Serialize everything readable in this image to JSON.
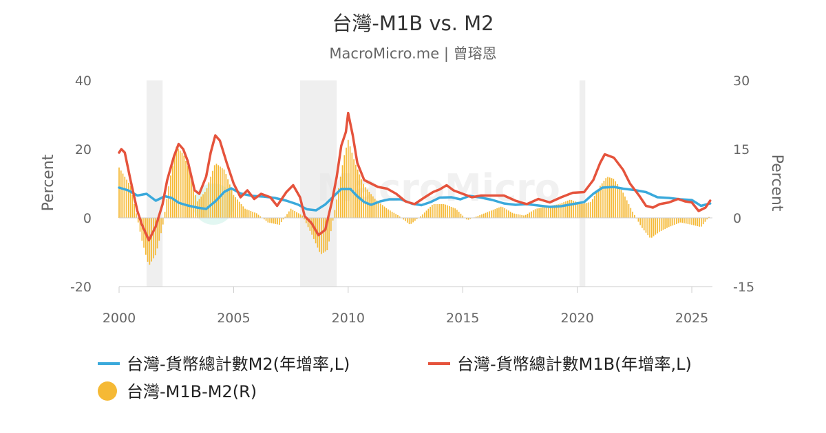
{
  "chart_data": {
    "type": "line",
    "title": "台灣-M1B vs. M2",
    "subtitle": "MacroMicro.me | 曾瑢恩",
    "x_ticks": [
      2000,
      2005,
      2010,
      2015,
      2020,
      2025
    ],
    "xlim": [
      2000,
      2025.9
    ],
    "ylim_left": [
      -20,
      40
    ],
    "ylim_right": [
      -15,
      30
    ],
    "yticks_left": [
      -20,
      0,
      20,
      40
    ],
    "yticks_right": [
      -15,
      0,
      15,
      30
    ],
    "ylabel_left": "Percent",
    "ylabel_right": "Percent",
    "watermark": "MacroMicro",
    "legend_position": "bottom",
    "shaded_periods": [
      [
        2001.2,
        2001.9
      ],
      [
        2007.9,
        2009.5
      ],
      [
        2020.1,
        2020.35
      ]
    ],
    "colors": {
      "m2": "#3aa9db",
      "m1b": "#e5533c",
      "spread": "#f5b935",
      "shade": "#efefef",
      "axis": "#cccccc"
    },
    "series": [
      {
        "key": "m2",
        "name": "台灣-貨幣總計數M2(年增率,L)",
        "type": "line",
        "axis": "left",
        "points": [
          [
            2000.0,
            8.8
          ],
          [
            2000.4,
            8.0
          ],
          [
            2000.8,
            6.5
          ],
          [
            2001.2,
            7.0
          ],
          [
            2001.6,
            5.0
          ],
          [
            2002.0,
            6.3
          ],
          [
            2002.3,
            5.8
          ],
          [
            2002.6,
            4.4
          ],
          [
            2003.0,
            3.6
          ],
          [
            2003.4,
            3.0
          ],
          [
            2003.8,
            2.6
          ],
          [
            2004.2,
            4.8
          ],
          [
            2004.6,
            7.6
          ],
          [
            2004.9,
            8.6
          ],
          [
            2005.3,
            7.1
          ],
          [
            2005.8,
            6.4
          ],
          [
            2006.3,
            6.2
          ],
          [
            2006.8,
            5.8
          ],
          [
            2007.3,
            5.0
          ],
          [
            2007.8,
            3.9
          ],
          [
            2008.2,
            2.5
          ],
          [
            2008.6,
            2.2
          ],
          [
            2009.0,
            3.9
          ],
          [
            2009.4,
            6.5
          ],
          [
            2009.7,
            8.4
          ],
          [
            2010.1,
            8.4
          ],
          [
            2010.4,
            6.3
          ],
          [
            2010.7,
            4.6
          ],
          [
            2011.0,
            3.8
          ],
          [
            2011.4,
            4.8
          ],
          [
            2011.8,
            5.4
          ],
          [
            2012.3,
            5.4
          ],
          [
            2012.8,
            4.1
          ],
          [
            2013.2,
            3.7
          ],
          [
            2013.6,
            4.6
          ],
          [
            2014.0,
            5.9
          ],
          [
            2014.5,
            6.0
          ],
          [
            2014.9,
            5.4
          ],
          [
            2015.3,
            6.4
          ],
          [
            2015.8,
            5.9
          ],
          [
            2016.3,
            5.2
          ],
          [
            2016.8,
            4.2
          ],
          [
            2017.3,
            3.8
          ],
          [
            2017.8,
            4.0
          ],
          [
            2018.3,
            3.6
          ],
          [
            2018.8,
            3.2
          ],
          [
            2019.3,
            3.4
          ],
          [
            2019.8,
            4.0
          ],
          [
            2020.3,
            4.6
          ],
          [
            2020.7,
            7.0
          ],
          [
            2021.1,
            8.8
          ],
          [
            2021.6,
            9.0
          ],
          [
            2022.0,
            8.5
          ],
          [
            2022.5,
            8.1
          ],
          [
            2023.0,
            7.5
          ],
          [
            2023.5,
            6.0
          ],
          [
            2024.0,
            5.8
          ],
          [
            2024.5,
            5.4
          ],
          [
            2025.0,
            5.2
          ],
          [
            2025.4,
            3.5
          ],
          [
            2025.8,
            4.2
          ]
        ]
      },
      {
        "key": "m1b",
        "name": "台灣-貨幣總計數M1B(年增率,L)",
        "type": "line",
        "axis": "left",
        "points": [
          [
            2000.0,
            19.0
          ],
          [
            2000.1,
            20.0
          ],
          [
            2000.25,
            19.0
          ],
          [
            2000.5,
            11.0
          ],
          [
            2000.8,
            2.0
          ],
          [
            2001.0,
            -2.0
          ],
          [
            2001.3,
            -6.5
          ],
          [
            2001.6,
            -2.5
          ],
          [
            2001.9,
            4.0
          ],
          [
            2002.1,
            11.0
          ],
          [
            2002.4,
            18.0
          ],
          [
            2002.6,
            21.5
          ],
          [
            2002.8,
            20.0
          ],
          [
            2003.0,
            16.5
          ],
          [
            2003.3,
            8.0
          ],
          [
            2003.5,
            7.0
          ],
          [
            2003.8,
            12.0
          ],
          [
            2004.0,
            19.0
          ],
          [
            2004.2,
            24.0
          ],
          [
            2004.4,
            22.5
          ],
          [
            2004.7,
            16.0
          ],
          [
            2005.0,
            10.0
          ],
          [
            2005.3,
            6.0
          ],
          [
            2005.6,
            8.0
          ],
          [
            2005.9,
            5.5
          ],
          [
            2006.2,
            7.0
          ],
          [
            2006.6,
            6.0
          ],
          [
            2006.9,
            3.5
          ],
          [
            2007.3,
            7.5
          ],
          [
            2007.6,
            9.5
          ],
          [
            2007.9,
            6.0
          ],
          [
            2008.1,
            0.5
          ],
          [
            2008.4,
            -1.5
          ],
          [
            2008.7,
            -5.0
          ],
          [
            2009.0,
            -3.5
          ],
          [
            2009.3,
            5.0
          ],
          [
            2009.5,
            12.0
          ],
          [
            2009.7,
            21.0
          ],
          [
            2009.9,
            25.0
          ],
          [
            2010.0,
            30.5
          ],
          [
            2010.2,
            24.0
          ],
          [
            2010.4,
            16.0
          ],
          [
            2010.7,
            11.0
          ],
          [
            2011.0,
            10.0
          ],
          [
            2011.3,
            9.0
          ],
          [
            2011.7,
            8.5
          ],
          [
            2012.1,
            7.0
          ],
          [
            2012.5,
            4.8
          ],
          [
            2012.9,
            4.0
          ],
          [
            2013.3,
            5.8
          ],
          [
            2013.7,
            7.5
          ],
          [
            2014.0,
            8.3
          ],
          [
            2014.3,
            9.5
          ],
          [
            2014.6,
            8.0
          ],
          [
            2015.0,
            7.0
          ],
          [
            2015.4,
            6.0
          ],
          [
            2015.8,
            6.5
          ],
          [
            2016.3,
            6.5
          ],
          [
            2016.8,
            6.5
          ],
          [
            2017.3,
            5.0
          ],
          [
            2017.8,
            4.0
          ],
          [
            2018.3,
            5.5
          ],
          [
            2018.8,
            4.5
          ],
          [
            2019.3,
            6.0
          ],
          [
            2019.8,
            7.3
          ],
          [
            2020.3,
            7.5
          ],
          [
            2020.7,
            11.0
          ],
          [
            2021.0,
            16.0
          ],
          [
            2021.2,
            18.5
          ],
          [
            2021.6,
            17.5
          ],
          [
            2022.0,
            14.0
          ],
          [
            2022.3,
            10.0
          ],
          [
            2022.7,
            6.5
          ],
          [
            2023.0,
            3.5
          ],
          [
            2023.3,
            3.0
          ],
          [
            2023.6,
            4.0
          ],
          [
            2024.0,
            4.5
          ],
          [
            2024.4,
            5.5
          ],
          [
            2024.7,
            4.8
          ],
          [
            2025.0,
            4.5
          ],
          [
            2025.3,
            2.0
          ],
          [
            2025.6,
            3.0
          ],
          [
            2025.8,
            5.0
          ]
        ]
      },
      {
        "key": "spread",
        "name": "台灣-M1B-M2(R)",
        "type": "bar",
        "axis": "right",
        "points": [
          [
            2000.0,
            11.0
          ],
          [
            2000.5,
            7.0
          ],
          [
            2001.0,
            -5.0
          ],
          [
            2001.3,
            -10.5
          ],
          [
            2001.6,
            -8.0
          ],
          [
            2001.9,
            -2.0
          ],
          [
            2002.2,
            8.0
          ],
          [
            2002.5,
            15.5
          ],
          [
            2002.8,
            14.0
          ],
          [
            2003.1,
            10.0
          ],
          [
            2003.4,
            3.5
          ],
          [
            2003.8,
            6.0
          ],
          [
            2004.2,
            12.0
          ],
          [
            2004.6,
            10.5
          ],
          [
            2005.0,
            5.0
          ],
          [
            2005.5,
            2.0
          ],
          [
            2006.0,
            1.0
          ],
          [
            2006.5,
            -1.0
          ],
          [
            2007.0,
            -1.5
          ],
          [
            2007.5,
            2.0
          ],
          [
            2008.0,
            0.5
          ],
          [
            2008.4,
            -3.5
          ],
          [
            2008.8,
            -8.0
          ],
          [
            2009.1,
            -7.0
          ],
          [
            2009.5,
            4.0
          ],
          [
            2009.8,
            13.0
          ],
          [
            2010.0,
            17.0
          ],
          [
            2010.3,
            12.0
          ],
          [
            2010.7,
            7.0
          ],
          [
            2011.2,
            4.0
          ],
          [
            2011.7,
            2.0
          ],
          [
            2012.2,
            0.5
          ],
          [
            2012.7,
            -1.5
          ],
          [
            2013.2,
            0.5
          ],
          [
            2013.7,
            3.0
          ],
          [
            2014.2,
            3.0
          ],
          [
            2014.7,
            2.0
          ],
          [
            2015.2,
            -0.5
          ],
          [
            2015.7,
            0.5
          ],
          [
            2016.2,
            1.5
          ],
          [
            2016.7,
            2.5
          ],
          [
            2017.2,
            1.0
          ],
          [
            2017.7,
            0.5
          ],
          [
            2018.2,
            2.0
          ],
          [
            2018.7,
            2.5
          ],
          [
            2019.2,
            3.0
          ],
          [
            2019.7,
            4.0
          ],
          [
            2020.2,
            3.0
          ],
          [
            2020.6,
            3.5
          ],
          [
            2021.0,
            7.0
          ],
          [
            2021.3,
            9.0
          ],
          [
            2021.6,
            8.5
          ],
          [
            2022.0,
            5.5
          ],
          [
            2022.4,
            1.5
          ],
          [
            2022.8,
            -2.0
          ],
          [
            2023.2,
            -4.5
          ],
          [
            2023.6,
            -3.0
          ],
          [
            2024.0,
            -2.0
          ],
          [
            2024.5,
            -1.0
          ],
          [
            2025.0,
            -1.5
          ],
          [
            2025.4,
            -2.0
          ],
          [
            2025.8,
            0.5
          ]
        ]
      }
    ]
  }
}
